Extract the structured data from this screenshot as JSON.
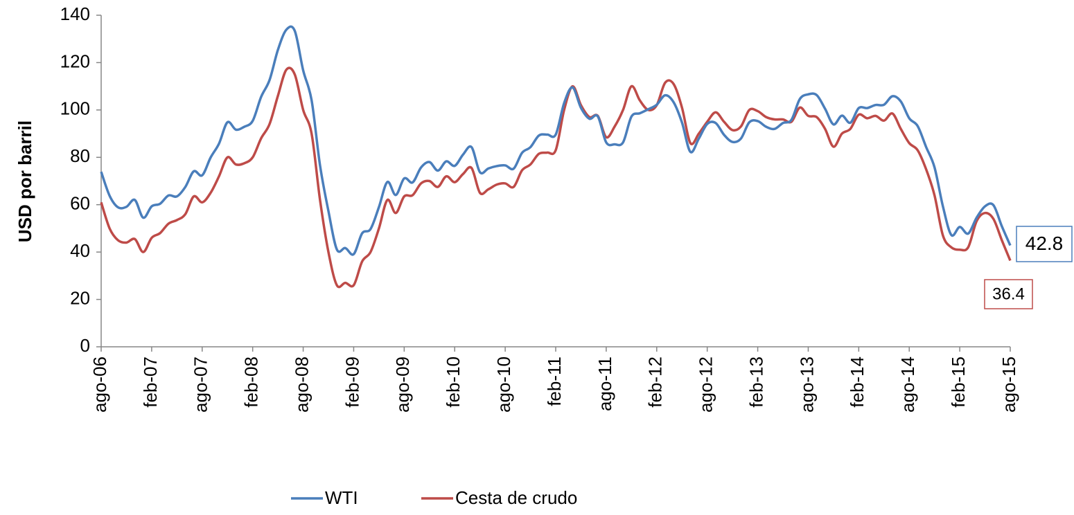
{
  "chart_data": {
    "type": "line",
    "ylabel": "USD por barril",
    "categories": [
      "ago-06",
      null,
      null,
      null,
      null,
      null,
      "feb-07",
      null,
      null,
      null,
      null,
      null,
      "ago-07",
      null,
      null,
      null,
      null,
      null,
      "feb-08",
      null,
      null,
      null,
      null,
      null,
      "ago-08",
      null,
      null,
      null,
      null,
      null,
      "feb-09",
      null,
      null,
      null,
      null,
      null,
      "ago-09",
      null,
      null,
      null,
      null,
      null,
      "feb-10",
      null,
      null,
      null,
      null,
      null,
      "ago-10",
      null,
      null,
      null,
      null,
      null,
      "feb-11",
      null,
      null,
      null,
      null,
      null,
      "ago-11",
      null,
      null,
      null,
      null,
      null,
      "feb-12",
      null,
      null,
      null,
      null,
      null,
      "ago-12",
      null,
      null,
      null,
      null,
      null,
      "feb-13",
      null,
      null,
      null,
      null,
      null,
      "ago-13",
      null,
      null,
      null,
      null,
      null,
      "feb-14",
      null,
      null,
      null,
      null,
      null,
      "ago-14",
      null,
      null,
      null,
      null,
      null,
      "feb-15",
      null,
      null,
      null,
      null,
      null,
      "ago-15"
    ],
    "series": [
      {
        "name": "WTI",
        "color": "#4a7ebb",
        "values": [
          73.9,
          63.8,
          58.9,
          59.1,
          62,
          54.5,
          59.3,
          60.4,
          63.9,
          63.5,
          67.5,
          74.1,
          72.4,
          79.9,
          85.8,
          94.8,
          91.7,
          92.9,
          95.4,
          105.5,
          112.6,
          125.4,
          133.9,
          133.4,
          116.7,
          104.1,
          76.6,
          57.3,
          41.1,
          41.7,
          39.1,
          47.9,
          49.7,
          59.0,
          69.6,
          64.1,
          71.1,
          69.4,
          75.7,
          78.0,
          74.4,
          78.3,
          76.4,
          81.2,
          84.3,
          73.7,
          75.3,
          76.3,
          76.6,
          75.2,
          81.9,
          84.3,
          89.2,
          89.6,
          89.6,
          102.9,
          109.5,
          100.9,
          96.3,
          97.3,
          86.3,
          85.5,
          86.3,
          97.2,
          98.6,
          100.3,
          102.2,
          106.2,
          103.3,
          94.7,
          82.3,
          87.9,
          94.1,
          94.5,
          89.5,
          86.5,
          87.9,
          94.8,
          95.3,
          92.9,
          92.0,
          94.5,
          95.8,
          104.6,
          106.6,
          106.3,
          100.5,
          93.9,
          97.6,
          94.6,
          100.8,
          100.8,
          102.1,
          102.2,
          105.8,
          103.6,
          96.5,
          93.2,
          84.4,
          75.8,
          59.3,
          47.2,
          50.6,
          47.8,
          54.5,
          59.3,
          59.8,
          50.9,
          42.8
        ]
      },
      {
        "name": "Cesta de crudo",
        "color": "#be4b48",
        "values": [
          61,
          50,
          45,
          44,
          45.5,
          40,
          46,
          48,
          52,
          53.5,
          56,
          63.5,
          61,
          65,
          72,
          80,
          77,
          77.5,
          80,
          88,
          94,
          106,
          117,
          115,
          100,
          90,
          62,
          40,
          26,
          27,
          26,
          36,
          40,
          50,
          62,
          56.5,
          63.5,
          64,
          69,
          70,
          67.5,
          72,
          69.5,
          73,
          75.5,
          65,
          66.5,
          68.5,
          69,
          67.5,
          74.5,
          77,
          81.5,
          82,
          83,
          100,
          110,
          102,
          97,
          97.5,
          88.5,
          93,
          100,
          110,
          104,
          100,
          102,
          111.5,
          111,
          101,
          86,
          90,
          95,
          99,
          95,
          91.5,
          93,
          100,
          99.5,
          97,
          96,
          96,
          95,
          101,
          97.5,
          97,
          92,
          84.5,
          90,
          92,
          98,
          96.5,
          97.5,
          95.5,
          98.5,
          92,
          86,
          83,
          75,
          64,
          47,
          42,
          41,
          42,
          53,
          56.5,
          54,
          45,
          36.4
        ]
      }
    ],
    "ylim": [
      0,
      140
    ],
    "yticks": [
      0,
      20,
      40,
      60,
      80,
      100,
      120,
      140
    ],
    "legend": "bottom"
  }
}
